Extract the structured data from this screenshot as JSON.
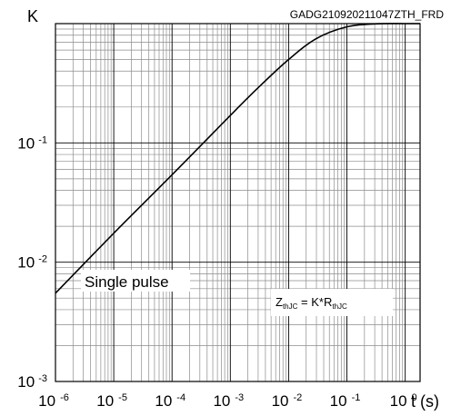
{
  "chart_data": {
    "type": "line",
    "title": "GADG210920211047ZTH_FRD",
    "xlabel": "t (s)",
    "ylabel": "K",
    "x_scale": "log",
    "y_scale": "log",
    "xlim": [
      1e-06,
      1.8
    ],
    "ylim": [
      0.001,
      1
    ],
    "grid": true,
    "x_ticks": [
      {
        "base": "10",
        "exp": "-6"
      },
      {
        "base": "10",
        "exp": "-5"
      },
      {
        "base": "10",
        "exp": "-4"
      },
      {
        "base": "10",
        "exp": "-3"
      },
      {
        "base": "10",
        "exp": "-2"
      },
      {
        "base": "10",
        "exp": "-1"
      },
      {
        "base": "10",
        "exp": "0"
      }
    ],
    "y_ticks": [
      {
        "base": "10",
        "exp": "-1"
      },
      {
        "base": "10",
        "exp": "-2"
      },
      {
        "base": "10",
        "exp": "-3"
      }
    ],
    "series": [
      {
        "color": "#000000",
        "x": [
          1e-06,
          1e-05,
          0.0001,
          0.001,
          0.003,
          0.01,
          0.03,
          0.1,
          0.3,
          1,
          1.8
        ],
        "y": [
          0.0055,
          0.0175,
          0.054,
          0.17,
          0.29,
          0.5,
          0.75,
          0.94,
          0.995,
          1.0,
          1.0
        ]
      }
    ],
    "annotations": [
      {
        "text": "Single pulse"
      },
      {
        "z": "Z",
        "z_sub": "thJC",
        "mid": " = K*R",
        "r_sub": "thJC"
      }
    ]
  }
}
